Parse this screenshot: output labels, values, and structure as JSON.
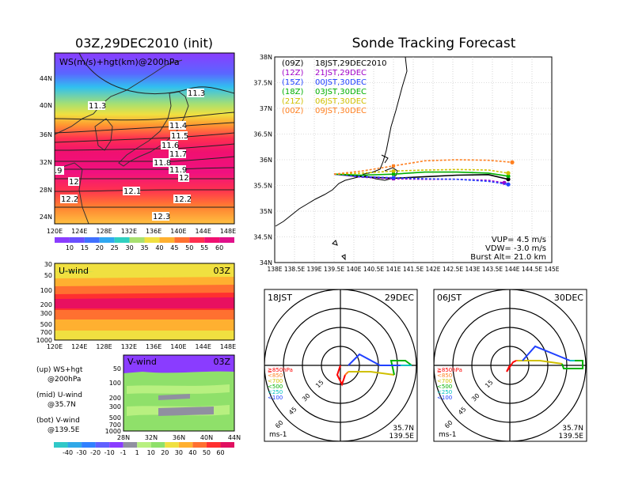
{
  "left_title": "03Z,29DEC2010 (init)",
  "right_title": "Sonde Tracking Forecast",
  "map_panel": {
    "label": "WS(m/s)+hgt(km)@200hPa",
    "lat_ticks": [
      "44N",
      "40N",
      "36N",
      "32N",
      "28N",
      "24N"
    ],
    "lon_ticks": [
      "120E",
      "124E",
      "128E",
      "132E",
      "136E",
      "140E",
      "144E",
      "148E"
    ],
    "contour_labels": [
      "11.3",
      "11.3",
      "11.4",
      "11.5",
      "11.6",
      "11.7",
      "11.8",
      "11.9",
      "12",
      "12",
      "12.1",
      "12.2",
      "12.2",
      "12.3",
      ".9"
    ],
    "colorbar_labels": [
      "10",
      "15",
      "20",
      "25",
      "30",
      "35",
      "40",
      "45",
      "50",
      "55",
      "60"
    ]
  },
  "uwind_panel": {
    "label": "U-wind",
    "time": "03Z",
    "p_ticks": [
      "30",
      "50",
      "100",
      "200",
      "300",
      "500",
      "700",
      "1000"
    ],
    "lon_ticks": [
      "120E",
      "124E",
      "128E",
      "132E",
      "136E",
      "140E",
      "144E",
      "148E"
    ]
  },
  "vwind_panel": {
    "label": "V-wind",
    "time": "03Z",
    "p_ticks": [
      "50",
      "100",
      "200",
      "300",
      "500",
      "700",
      "1000"
    ],
    "lat_ticks": [
      "28N",
      "32N",
      "36N",
      "40N",
      "44N"
    ]
  },
  "legend_notes": [
    {
      "line1": "(up) WS+hgt",
      "line2": "@200hPa"
    },
    {
      "line1": "(mid) U-wind",
      "line2": "@35.7N"
    },
    {
      "line1": "(bot) V-wind",
      "line2": "@139.5E"
    }
  ],
  "bottom_colorbar_labels": [
    "-40",
    "-30",
    "-20",
    "-10",
    "-1",
    "1",
    "10",
    "20",
    "30",
    "40",
    "50",
    "60"
  ],
  "tracking": {
    "lat_ticks": [
      "38N",
      "37.5N",
      "37N",
      "36.5N",
      "36N",
      "35.5N",
      "35N",
      "34.5N",
      "34N"
    ],
    "lon_ticks": [
      "138E",
      "138.5E",
      "139E",
      "139.5E",
      "140E",
      "140.5E",
      "141E",
      "141.5E",
      "142E",
      "142.5E",
      "143E",
      "143.5E",
      "144E",
      "144.5E",
      "145E"
    ],
    "legend": [
      {
        "z": "(09Z)",
        "jst": "18JST,29DEC2010",
        "color": "#000000"
      },
      {
        "z": "(12Z)",
        "jst": "21JST,29DEC",
        "color": "#a000c8"
      },
      {
        "z": "(15Z)",
        "jst": "00JST,30DEC",
        "color": "#2040ff"
      },
      {
        "z": "(18Z)",
        "jst": "03JST,30DEC",
        "color": "#00b000"
      },
      {
        "z": "(21Z)",
        "jst": "06JST,30DEC",
        "color": "#d0c000"
      },
      {
        "z": "(00Z)",
        "jst": "09JST,30DEC",
        "color": "#ff8020"
      }
    ],
    "vup": "VUP= 4.5 m/s",
    "vdw": "VDW= -3.0 m/s",
    "burst": "Burst Alt= 21.0 km"
  },
  "hodo_left": {
    "time": "18JST",
    "date": "29DEC",
    "ring_labels": [
      "15",
      "30",
      "45",
      "60"
    ],
    "units": "ms-1",
    "lat": "35.7N",
    "lon": "139.5E"
  },
  "hodo_right": {
    "time": "06JST",
    "date": "30DEC",
    "ring_labels": [
      "15",
      "30",
      "45",
      "60"
    ],
    "units": "ms-1",
    "lat": "35.7N",
    "lon": "139.5E"
  },
  "hodo_legend": [
    {
      "label": "≧850hPa",
      "color": "#ff0000"
    },
    {
      "label": "<850",
      "color": "#ff8020"
    },
    {
      "label": "<700",
      "color": "#d0c000"
    },
    {
      "label": "<500",
      "color": "#00b000"
    },
    {
      "label": "<250",
      "color": "#00c0c0"
    },
    {
      "label": "<100",
      "color": "#2040ff"
    }
  ],
  "chart_data": {
    "type": "line",
    "title": "Sonde Tracking Forecast",
    "xlim": [
      138,
      145
    ],
    "ylim": [
      34,
      38
    ],
    "series": [
      {
        "name": "(09Z) 18JST,29DEC2010",
        "color": "#000000",
        "x": [
          139.5,
          140.2,
          141.0,
          141.8,
          142.6,
          143.4,
          143.9
        ],
        "y": [
          35.72,
          35.67,
          35.64,
          35.67,
          35.7,
          35.71,
          35.62
        ]
      },
      {
        "name": "(12Z) 21JST,29DEC",
        "color": "#a000c8",
        "x": [
          139.5,
          140.2,
          141.0,
          141.8,
          142.6,
          143.4,
          143.8
        ],
        "y": [
          35.72,
          35.66,
          35.63,
          35.62,
          35.62,
          35.6,
          35.55
        ]
      },
      {
        "name": "(15Z) 00JST,30DEC",
        "color": "#2040ff",
        "x": [
          139.5,
          140.2,
          141.0,
          141.8,
          142.6,
          143.4,
          143.9
        ],
        "y": [
          35.72,
          35.67,
          35.65,
          35.63,
          35.62,
          35.58,
          35.52
        ]
      },
      {
        "name": "(18Z) 03JST,30DEC",
        "color": "#00b000",
        "x": [
          139.5,
          140.2,
          141.0,
          141.8,
          142.6,
          143.4,
          143.9
        ],
        "y": [
          35.72,
          35.7,
          35.72,
          35.76,
          35.76,
          35.74,
          35.68
        ]
      },
      {
        "name": "(21Z) 06JST,30DEC",
        "color": "#d0c000",
        "x": [
          139.5,
          140.2,
          141.0,
          141.8,
          142.6,
          143.4,
          143.9
        ],
        "y": [
          35.72,
          35.74,
          35.78,
          35.8,
          35.81,
          35.8,
          35.74
        ]
      },
      {
        "name": "(00Z) 09JST,30DEC",
        "color": "#ff8020",
        "x": [
          139.5,
          140.2,
          141.0,
          141.8,
          142.6,
          143.4,
          144.0
        ],
        "y": [
          35.72,
          35.78,
          35.88,
          35.98,
          36.0,
          35.99,
          35.95
        ]
      }
    ]
  }
}
